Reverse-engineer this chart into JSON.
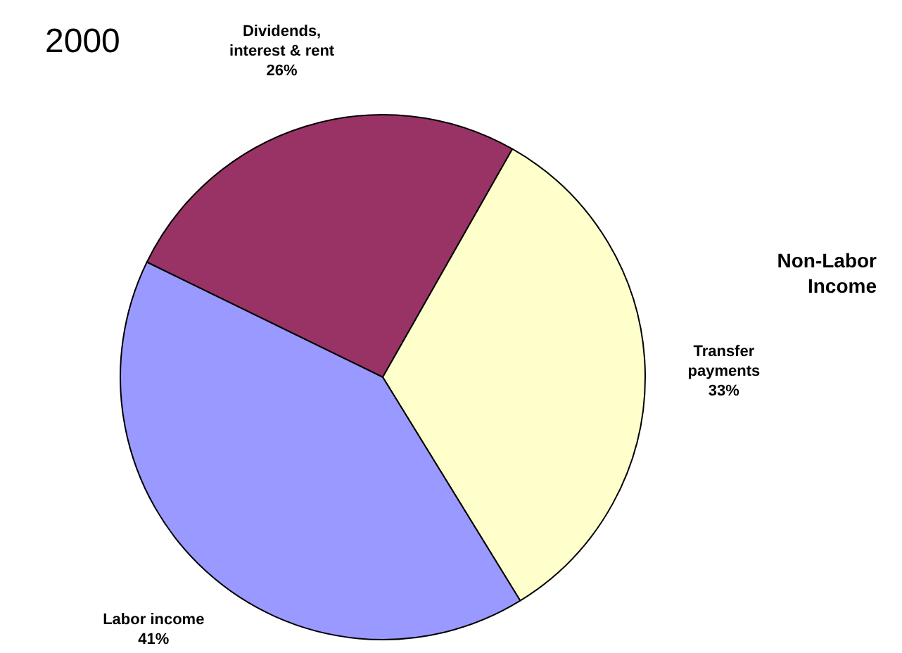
{
  "chart_data": {
    "type": "pie",
    "title": "2000",
    "categories": [
      "Dividends, interest & rent",
      "Transfer payments",
      "Labor income"
    ],
    "values": [
      26,
      33,
      41
    ],
    "colors": [
      "#993366",
      "#ffffcc",
      "#9999ff"
    ],
    "value_labels": [
      "26%",
      "33%",
      "41%"
    ],
    "annotations": [
      "Non-Labor Income"
    ],
    "legend": false
  }
}
